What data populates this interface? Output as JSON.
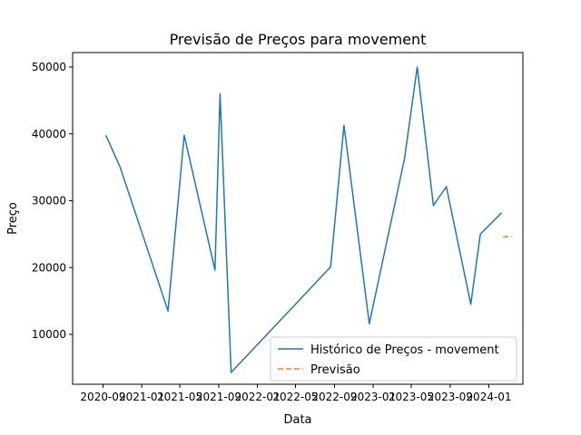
{
  "chart_data": {
    "type": "line",
    "title": "Previsão de Preços para movement",
    "xlabel": "Data",
    "ylabel": "Preço",
    "ylim": [
      2000,
      52000
    ],
    "yticks": [
      10000,
      20000,
      30000,
      40000,
      50000
    ],
    "x_ticks": [
      "2020-09",
      "2021-01",
      "2021-05",
      "2021-09",
      "2022-01",
      "2022-05",
      "2022-09",
      "2023-01",
      "2023-05",
      "2023-09",
      "2024-01"
    ],
    "legend_position": "lower right",
    "series": [
      {
        "name": "Histórico de Preços - movement",
        "color": "#1f77b4",
        "style": "solid",
        "x": [
          "2020-09-10",
          "2020-10-25",
          "2021-03-25",
          "2021-05-15",
          "2021-08-20",
          "2021-09-05",
          "2021-10-10",
          "2022-08-20",
          "2022-10-01",
          "2022-12-20",
          "2023-04-10",
          "2023-05-20",
          "2023-07-10",
          "2023-08-20",
          "2023-11-05",
          "2023-12-05",
          "2024-02-10"
        ],
        "values": [
          39800,
          35000,
          13500,
          39800,
          19600,
          46000,
          4300,
          20100,
          41300,
          11600,
          36300,
          50000,
          29300,
          32100,
          14500,
          25000,
          28200
        ]
      },
      {
        "name": "Previsão",
        "color": "#ff7f0e",
        "style": "dashed",
        "x": [
          "2024-02-15",
          "2024-03-15"
        ],
        "values": [
          24600,
          24600
        ]
      }
    ]
  }
}
